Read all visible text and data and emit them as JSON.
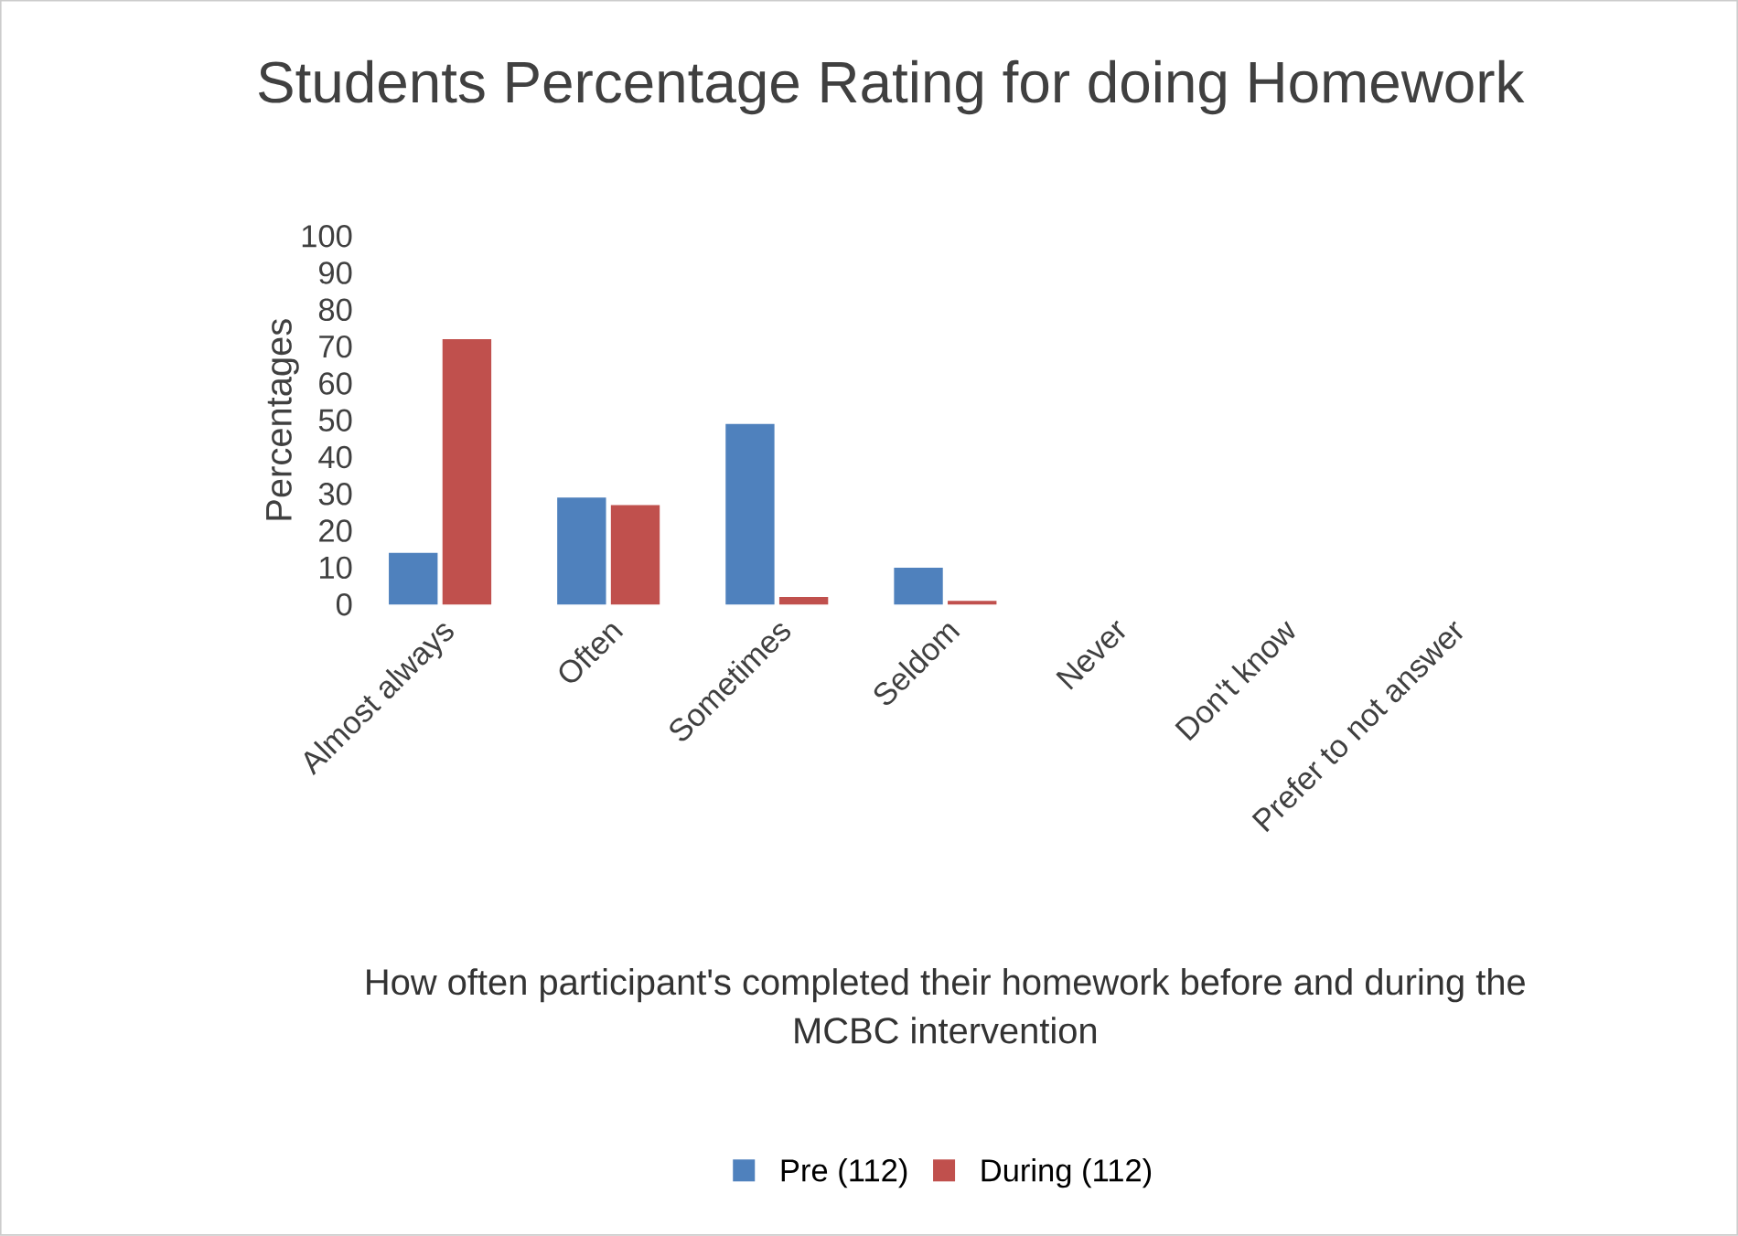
{
  "chart_data": {
    "type": "bar",
    "title": "Students Percentage Rating for doing Homework",
    "xlabel": "How often participant's completed their homework before and during the MCBC intervention",
    "ylabel": "Percentages",
    "categories": [
      "Almost always",
      "Often",
      "Sometimes",
      "Seldom",
      "Never",
      "Don't know",
      "Prefer to not answer"
    ],
    "series": [
      {
        "name": "Pre (112)",
        "color": "#4f81bd",
        "values": [
          14,
          29,
          49,
          10,
          0,
          0,
          0
        ]
      },
      {
        "name": "During (112)",
        "color": "#c0504d",
        "values": [
          72,
          27,
          2,
          1,
          0,
          0,
          0
        ]
      }
    ],
    "ylim": [
      0,
      100
    ],
    "yticks": [
      0,
      10,
      20,
      30,
      40,
      50,
      60,
      70,
      80,
      90,
      100
    ],
    "grid": false,
    "legend": "bottom"
  }
}
